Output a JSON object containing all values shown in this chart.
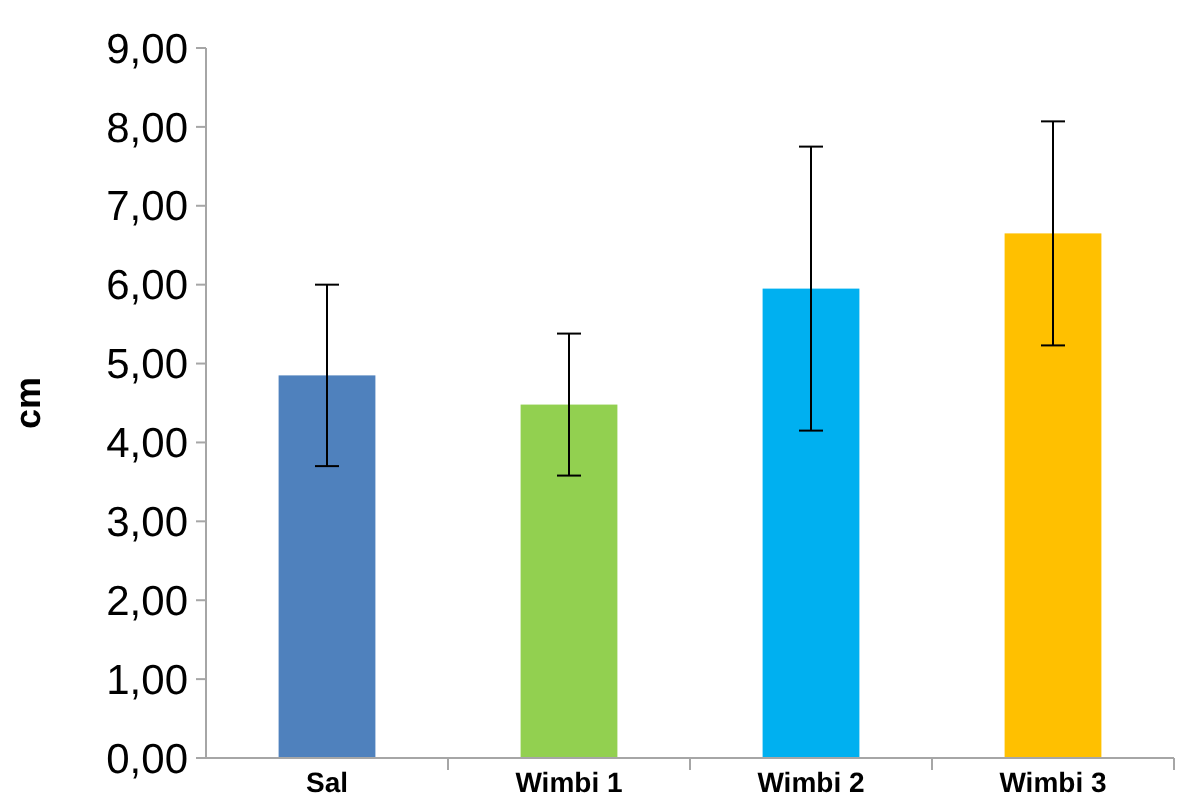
{
  "chart_data": {
    "type": "bar",
    "ylabel": "cm",
    "categories": [
      "Sal",
      "Wimbi 1",
      "Wimbi 2",
      "Wimbi 3"
    ],
    "values": [
      4.85,
      4.48,
      5.95,
      6.65
    ],
    "colors": [
      "#4f81bd",
      "#92d050",
      "#00b0f0",
      "#ffc000"
    ],
    "errors": [
      1.15,
      0.9,
      1.8,
      1.42
    ],
    "ylim": [
      0,
      9
    ],
    "yticks": [
      {
        "value": 0,
        "label": "0,00"
      },
      {
        "value": 1,
        "label": "1,00"
      },
      {
        "value": 2,
        "label": "2,00"
      },
      {
        "value": 3,
        "label": "3,00"
      },
      {
        "value": 4,
        "label": "4,00"
      },
      {
        "value": 5,
        "label": "5,00"
      },
      {
        "value": 6,
        "label": "6,00"
      },
      {
        "value": 7,
        "label": "7,00"
      },
      {
        "value": 8,
        "label": "8,00"
      },
      {
        "value": 9,
        "label": "9,00"
      }
    ],
    "grid": false
  }
}
